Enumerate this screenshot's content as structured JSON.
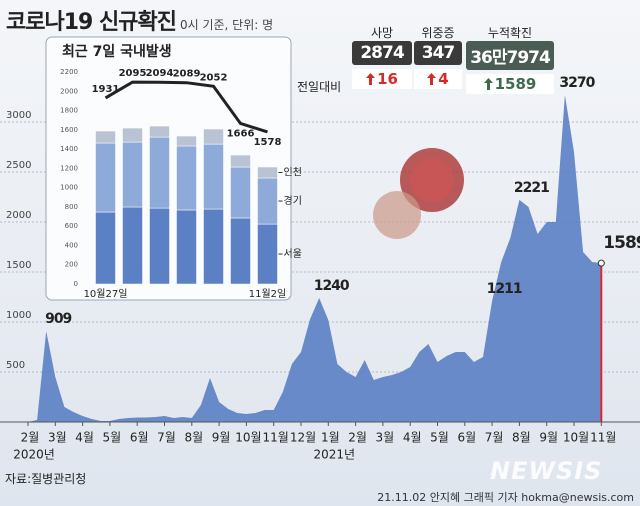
{
  "header": {
    "title": "코로나19 신규확진",
    "subtitle": "0시 기준, 단위: 명"
  },
  "stats": {
    "change_label": "전일대비",
    "items": [
      {
        "label": "사망",
        "total": "2874",
        "change": 16
      },
      {
        "label": "위중증",
        "total": "347",
        "change": 4
      },
      {
        "label": "누적확진",
        "total": "36만7974",
        "change": 1589
      }
    ]
  },
  "chart_data": [
    {
      "type": "area",
      "color": "#5b7fc4",
      "last_color": "#e0262b",
      "categories": [
        "2월",
        null,
        null,
        "3월",
        null,
        null,
        "4월",
        null,
        null,
        "5월",
        null,
        null,
        "6월",
        null,
        null,
        "7월",
        null,
        null,
        "8월",
        null,
        null,
        "9월",
        null,
        null,
        "10월",
        null,
        null,
        "11월",
        null,
        null,
        "12월",
        null,
        null,
        "1월",
        null,
        null,
        "2월",
        null,
        null,
        "3월",
        null,
        null,
        "4월",
        null,
        null,
        "5월",
        null,
        null,
        "6월",
        null,
        null,
        "7월",
        null,
        null,
        "8월",
        null,
        null,
        "9월",
        null,
        null,
        "10월",
        null,
        null,
        "11월"
      ],
      "years": [
        "2020년",
        "2021년"
      ],
      "values": [
        1,
        20,
        909,
        450,
        150,
        100,
        60,
        30,
        10,
        10,
        30,
        40,
        45,
        45,
        50,
        60,
        40,
        50,
        40,
        170,
        440,
        200,
        130,
        90,
        80,
        90,
        120,
        120,
        300,
        580,
        700,
        1030,
        1240,
        1020,
        580,
        500,
        450,
        620,
        420,
        450,
        470,
        500,
        550,
        700,
        780,
        600,
        660,
        700,
        700,
        600,
        650,
        1211,
        1600,
        1840,
        2221,
        2150,
        1880,
        2000,
        2000,
        3270,
        2700,
        1700,
        1600,
        1589
      ],
      "value_labels": [
        null,
        null,
        "909",
        null,
        null,
        null,
        null,
        null,
        null,
        null,
        null,
        null,
        null,
        null,
        null,
        null,
        null,
        null,
        null,
        null,
        null,
        null,
        null,
        null,
        null,
        null,
        null,
        null,
        null,
        null,
        null,
        null,
        "1240",
        null,
        null,
        null,
        null,
        null,
        null,
        null,
        null,
        null,
        null,
        null,
        null,
        null,
        null,
        null,
        null,
        null,
        null,
        "1211",
        null,
        null,
        "2221",
        null,
        null,
        null,
        null,
        "3270",
        null,
        null,
        null,
        "1589"
      ],
      "ylim": [
        0,
        3400
      ],
      "yticks": [
        500,
        1000,
        1500,
        2000,
        2500,
        3000
      ],
      "grid": true
    },
    {
      "type": "bar",
      "stacked": true,
      "title": "최근 7일 국내발생",
      "categories": [
        "10월27일",
        null,
        null,
        null,
        null,
        null,
        "11월2일"
      ],
      "series": [
        {
          "name": "서울",
          "color": "#5b80c4",
          "values": [
            747,
            799,
            788,
            768,
            778,
            685,
            622
          ]
        },
        {
          "name": "경기",
          "color": "#8eaad9",
          "values": [
            716,
            674,
            737,
            664,
            674,
            529,
            478
          ]
        },
        {
          "name": "인천",
          "color": "#b9c3d3",
          "values": [
            124,
            145,
            114,
            103,
            156,
            124,
            114
          ]
        },
        {
          "type": "line",
          "color": "#222222",
          "values": [
            1931,
            2095,
            2094,
            2089,
            2052,
            1666,
            1578
          ]
        }
      ],
      "ylim": [
        0,
        2200
      ],
      "yticks": [
        0,
        200,
        400,
        600,
        800,
        1000,
        1200,
        1400,
        1600,
        1800,
        2000,
        2200
      ]
    }
  ],
  "footer": {
    "source": "자료:질병관리청",
    "credit": "21.11.02 안지혜 그래픽 기자 hokma@newsis.com",
    "watermark": "NEWSIS"
  }
}
